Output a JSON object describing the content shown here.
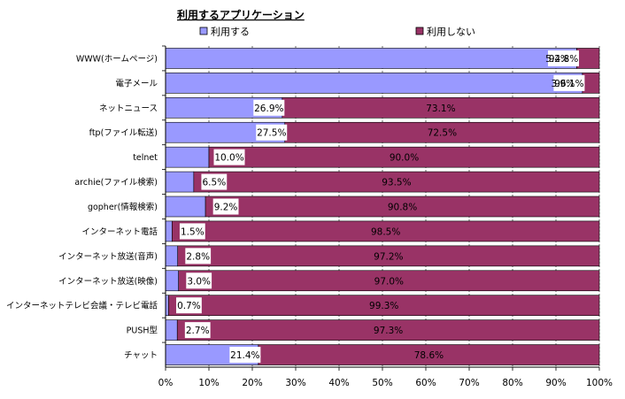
{
  "chart_data": {
    "type": "bar",
    "orientation": "horizontal",
    "stacked": true,
    "title": "利用するアプリケーション",
    "legend_position": "top",
    "grid": true,
    "xlim": [
      0,
      100
    ],
    "x_ticks": [
      "0%",
      "10%",
      "20%",
      "30%",
      "40%",
      "50%",
      "60%",
      "70%",
      "80%",
      "90%",
      "100%"
    ],
    "categories": [
      "WWW(ホームページ)",
      "電子メール",
      "ネットニュース",
      "ftp(ファイル転送)",
      "telnet",
      "archie(ファイル検索)",
      "gopher(情報検索)",
      "インターネット電話",
      "インターネット放送(音声)",
      "インターネット放送(映像)",
      "インターネットテレビ会議・テレビ電話",
      "PUSH型",
      "チャット"
    ],
    "series": [
      {
        "name": "利用する",
        "color": "#9999ff",
        "values": [
          94.8,
          96.1,
          26.9,
          27.5,
          10.0,
          6.5,
          9.2,
          1.5,
          2.8,
          3.0,
          0.7,
          2.7,
          21.4
        ],
        "labels": [
          "94.8%",
          "96.1%",
          "26.9%",
          "27.5%",
          "10.0%",
          "6.5%",
          "9.2%",
          "1.5%",
          "2.8%",
          "3.0%",
          "0.7%",
          "2.7%",
          "21.4%"
        ]
      },
      {
        "name": "利用しない",
        "color": "#993366",
        "values": [
          5.2,
          3.9,
          73.1,
          72.5,
          90.0,
          93.5,
          90.8,
          98.5,
          97.2,
          97.0,
          99.3,
          97.3,
          78.6
        ],
        "labels": [
          "5.2%",
          "3.9%",
          "73.1%",
          "72.5%",
          "90.0%",
          "93.5%",
          "90.8%",
          "98.5%",
          "97.2%",
          "97.0%",
          "99.3%",
          "97.3%",
          "78.6%"
        ]
      }
    ]
  }
}
